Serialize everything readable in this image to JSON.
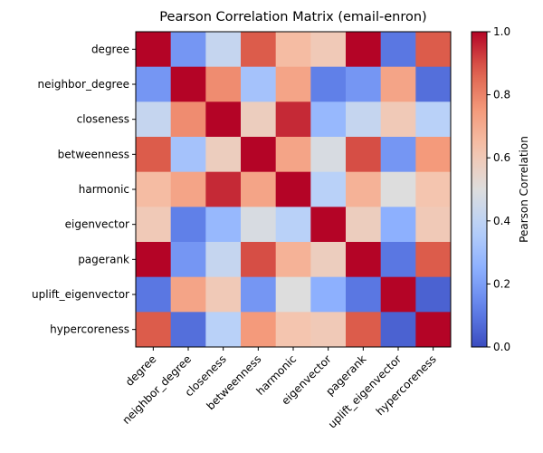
{
  "chart_data": {
    "type": "heatmap",
    "title": "Pearson Correlation Matrix (email-enron)",
    "row_labels": [
      "degree",
      "neighbor_degree",
      "closeness",
      "betweenness",
      "harmonic",
      "eigenvector",
      "pagerank",
      "uplift_eigenvector",
      "hypercoreness"
    ],
    "col_labels": [
      "degree",
      "neighbor_degree",
      "closeness",
      "betweenness",
      "harmonic",
      "eigenvector",
      "pagerank",
      "uplift_eigenvector",
      "hypercoreness"
    ],
    "values": [
      [
        1.0,
        0.18,
        0.42,
        0.88,
        0.65,
        0.6,
        1.0,
        0.1,
        0.88
      ],
      [
        0.18,
        1.0,
        0.78,
        0.32,
        0.72,
        0.12,
        0.18,
        0.72,
        0.08
      ],
      [
        0.42,
        0.78,
        1.0,
        0.58,
        0.95,
        0.28,
        0.42,
        0.6,
        0.38
      ],
      [
        0.88,
        0.32,
        0.58,
        1.0,
        0.72,
        0.48,
        0.9,
        0.18,
        0.75
      ],
      [
        0.65,
        0.72,
        0.95,
        0.72,
        1.0,
        0.38,
        0.68,
        0.5,
        0.62
      ],
      [
        0.6,
        0.12,
        0.28,
        0.48,
        0.38,
        1.0,
        0.58,
        0.25,
        0.6
      ],
      [
        1.0,
        0.18,
        0.42,
        0.9,
        0.68,
        0.58,
        1.0,
        0.1,
        0.88
      ],
      [
        0.1,
        0.72,
        0.6,
        0.18,
        0.5,
        0.25,
        0.1,
        1.0,
        0.05
      ],
      [
        0.88,
        0.08,
        0.38,
        0.75,
        0.62,
        0.6,
        0.88,
        0.05,
        1.0
      ]
    ],
    "colorbar": {
      "label": "Pearson Correlation",
      "min": 0.0,
      "max": 1.0,
      "ticks": [
        "0.0",
        "0.2",
        "0.4",
        "0.6",
        "0.8",
        "1.0"
      ],
      "colormap": "coolwarm"
    },
    "grid": false
  }
}
